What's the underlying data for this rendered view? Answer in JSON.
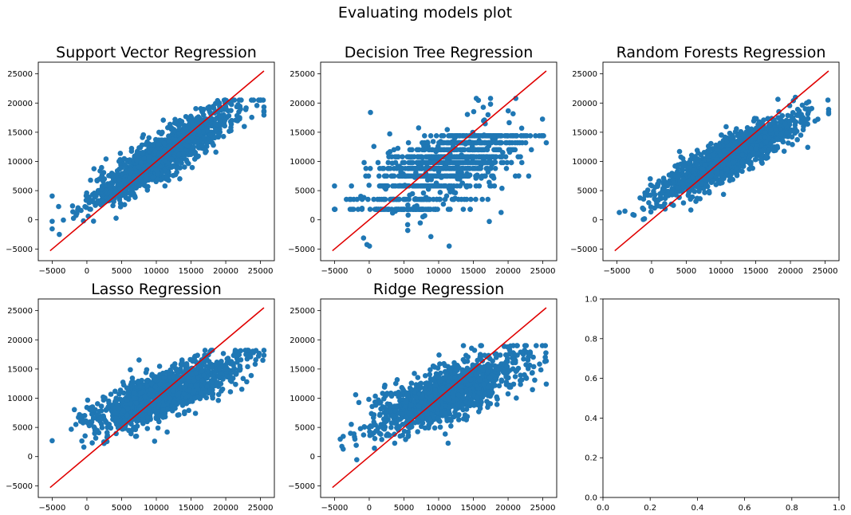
{
  "figure": {
    "title": "Evaluating models plot"
  },
  "colors": {
    "points": "#1f77b4",
    "line": "#e00000",
    "axes": "#000000",
    "background": "#ffffff"
  },
  "chart_data": [
    {
      "type": "scatter",
      "title": "Support Vector Regression",
      "xlim": [
        -7000,
        27000
      ],
      "ylim": [
        -7000,
        27000
      ],
      "xticks": [
        -5000,
        0,
        5000,
        10000,
        15000,
        20000,
        25000
      ],
      "yticks": [
        -5000,
        0,
        5000,
        10000,
        15000,
        20000,
        25000
      ],
      "reference_line": [
        [
          -5300,
          -5300
        ],
        [
          25500,
          25500
        ]
      ],
      "point_cloud": {
        "n": 1300,
        "x_center": 11000,
        "x_spread": 5200,
        "slope": 0.75,
        "intercept": 2800,
        "noise": 1900,
        "y_min": -2500,
        "y_max": 20500
      }
    },
    {
      "type": "scatter",
      "title": "Decision Tree Regression",
      "xlim": [
        -7000,
        27000
      ],
      "ylim": [
        -7000,
        27000
      ],
      "xticks": [
        -5000,
        0,
        5000,
        10000,
        15000,
        20000,
        25000
      ],
      "yticks": [
        -5000,
        0,
        5000,
        10000,
        15000,
        20000,
        25000
      ],
      "reference_line": [
        [
          -5300,
          -5300
        ],
        [
          25500,
          25500
        ]
      ],
      "point_cloud": {
        "n": 1300,
        "x_center": 11000,
        "x_spread": 5200,
        "discrete_levels": [
          1800,
          3500,
          5800,
          7500,
          8800,
          9800,
          10800,
          12000,
          13200,
          14400
        ],
        "y_min": -4500,
        "y_max": 20800
      }
    },
    {
      "type": "scatter",
      "title": "Random Forests Regression",
      "xlim": [
        -7000,
        27000
      ],
      "ylim": [
        -7000,
        27000
      ],
      "xticks": [
        -5000,
        0,
        5000,
        10000,
        15000,
        20000,
        25000
      ],
      "yticks": [
        -5000,
        0,
        5000,
        10000,
        15000,
        20000,
        25000
      ],
      "reference_line": [
        [
          -5300,
          -5300
        ],
        [
          25500,
          25500
        ]
      ],
      "point_cloud": {
        "n": 1300,
        "x_center": 11000,
        "x_spread": 5200,
        "slope": 0.62,
        "intercept": 3800,
        "noise": 1700,
        "y_min": 0,
        "y_max": 21800
      }
    },
    {
      "type": "scatter",
      "title": "Lasso Regression",
      "xlim": [
        -7000,
        27000
      ],
      "ylim": [
        -7000,
        27000
      ],
      "xticks": [
        -5000,
        0,
        5000,
        10000,
        15000,
        20000,
        25000
      ],
      "yticks": [
        -5000,
        0,
        5000,
        10000,
        15000,
        20000,
        25000
      ],
      "reference_line": [
        [
          -5300,
          -5300
        ],
        [
          25500,
          25500
        ]
      ],
      "point_cloud": {
        "n": 1300,
        "x_center": 11000,
        "x_spread": 5200,
        "slope": 0.45,
        "intercept": 5700,
        "noise": 2000,
        "y_min": -2000,
        "y_max": 18200
      }
    },
    {
      "type": "scatter",
      "title": "Ridge Regression",
      "xlim": [
        -7000,
        27000
      ],
      "ylim": [
        -7000,
        27000
      ],
      "xticks": [
        -5000,
        0,
        5000,
        10000,
        15000,
        20000,
        25000
      ],
      "yticks": [
        -5000,
        0,
        5000,
        10000,
        15000,
        20000,
        25000
      ],
      "reference_line": [
        [
          -5300,
          -5300
        ],
        [
          25500,
          25500
        ]
      ],
      "point_cloud": {
        "n": 1300,
        "x_center": 11000,
        "x_spread": 5200,
        "slope": 0.46,
        "intercept": 5600,
        "noise": 2300,
        "y_min": -3700,
        "y_max": 19000
      }
    },
    {
      "type": "empty",
      "title": "",
      "xlim": [
        0,
        1
      ],
      "ylim": [
        0,
        1
      ],
      "xticks": [
        0.0,
        0.2,
        0.4,
        0.6,
        0.8,
        1.0
      ],
      "yticks": [
        0.0,
        0.2,
        0.4,
        0.6,
        0.8,
        1.0
      ],
      "xtick_labels": [
        "0.0",
        "0.2",
        "0.4",
        "0.6",
        "0.8",
        "1.0"
      ],
      "ytick_labels": [
        "0.0",
        "0.2",
        "0.4",
        "0.6",
        "0.8",
        "1.0"
      ]
    }
  ]
}
